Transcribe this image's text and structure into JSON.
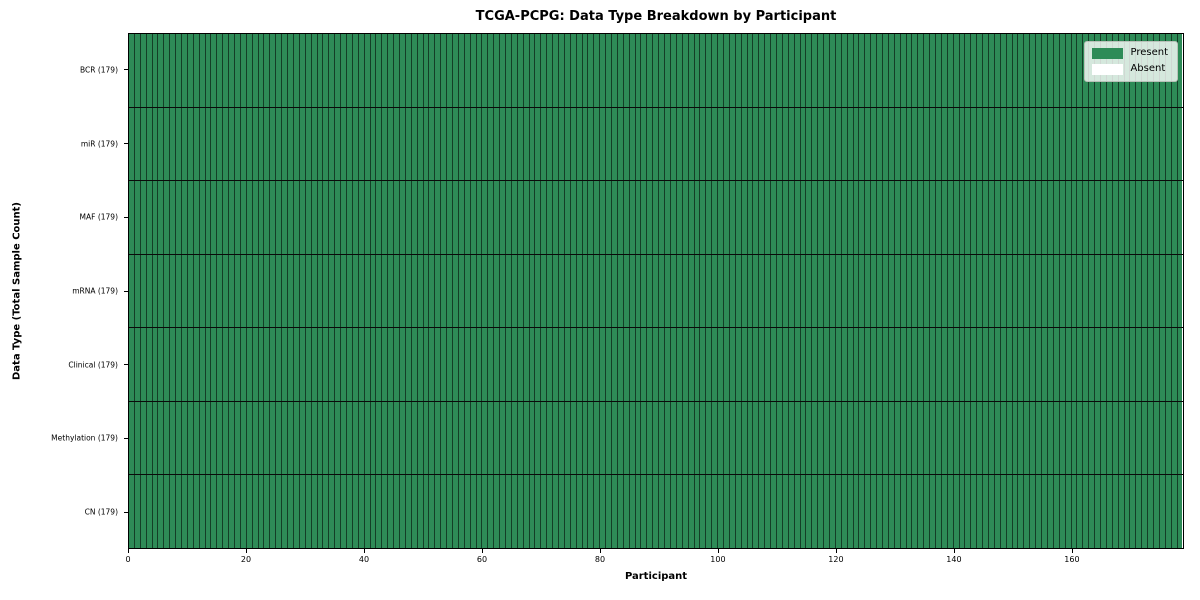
{
  "chart_data": {
    "type": "heatmap",
    "title": "TCGA-PCPG: Data Type Breakdown by Participant",
    "xlabel": "Participant",
    "ylabel": "Data Type (Total Sample Count)",
    "participants": 179,
    "x_ticks": [
      0,
      20,
      40,
      60,
      80,
      100,
      120,
      140,
      160
    ],
    "rows": [
      {
        "label": "BCR (179)",
        "data_type": "BCR",
        "total_samples": 179,
        "present_count": 179,
        "absent_count": 0
      },
      {
        "label": "miR (179)",
        "data_type": "miR",
        "total_samples": 179,
        "present_count": 179,
        "absent_count": 0
      },
      {
        "label": "MAF (179)",
        "data_type": "MAF",
        "total_samples": 179,
        "present_count": 179,
        "absent_count": 0
      },
      {
        "label": "mRNA (179)",
        "data_type": "mRNA",
        "total_samples": 179,
        "present_count": 179,
        "absent_count": 0
      },
      {
        "label": "Clinical (179)",
        "data_type": "Clinical",
        "total_samples": 179,
        "present_count": 179,
        "absent_count": 0
      },
      {
        "label": "Methylation (179)",
        "data_type": "Methylation",
        "total_samples": 179,
        "present_count": 179,
        "absent_count": 0
      },
      {
        "label": "CN (179)",
        "data_type": "CN",
        "total_samples": 179,
        "present_count": 179,
        "absent_count": 0
      }
    ],
    "legend": {
      "position": "upper right",
      "entries": [
        {
          "label": "Present",
          "color": "#2e8b57"
        },
        {
          "label": "Absent",
          "color": "#ffffff"
        }
      ]
    },
    "colors": {
      "present": "#2e8b57",
      "absent": "#ffffff",
      "cell_edge": "rgba(0,0,0,0.55)",
      "row_separator": "#0a0a0a",
      "spine": "#000000"
    }
  }
}
